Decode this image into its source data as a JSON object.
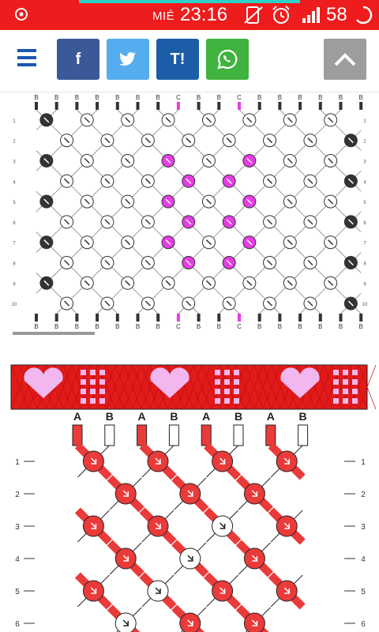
{
  "status_bar": {
    "day": "MIÉ",
    "time": "23:16",
    "battery_percent": "58",
    "icons": [
      "settings-gear-icon",
      "no-sim-icon",
      "alarm-icon",
      "signal-icon",
      "battery-icon"
    ],
    "color": "#ee1c1c"
  },
  "toolbar": {
    "menu_icon": "hamburger-menu-icon",
    "share_buttons": [
      {
        "label": "f",
        "name": "facebook",
        "color": "#3b5998"
      },
      {
        "label": "",
        "name": "twitter",
        "color": "#55acee"
      },
      {
        "label": "T!",
        "name": "tuenti",
        "color": "#1b5ea7"
      },
      {
        "label": "",
        "name": "whatsapp",
        "color": "#3fb33e"
      }
    ],
    "scroll_top_icon": "chevron-up-icon"
  },
  "pattern1": {
    "string_labels_top": [
      "B",
      "B",
      "B",
      "B",
      "B",
      "B",
      "B",
      "C",
      "B",
      "B",
      "C",
      "B",
      "B",
      "B",
      "B",
      "B",
      "B"
    ],
    "string_labels_bottom": [
      "B",
      "B",
      "B",
      "B",
      "B",
      "B",
      "B",
      "C",
      "B",
      "B",
      "C",
      "B",
      "B",
      "B",
      "B",
      "B",
      "B"
    ],
    "row_numbers": [
      "1",
      "2",
      "3",
      "4",
      "5",
      "6",
      "7",
      "8",
      "9",
      "10"
    ],
    "colors": {
      "B": "#333333",
      "C": "#e63ce6",
      "A": "#ffffff"
    }
  },
  "pattern2": {
    "string_labels": [
      "A",
      "B",
      "A",
      "B",
      "A",
      "B",
      "A",
      "B"
    ],
    "row_numbers": [
      "1",
      "2",
      "3",
      "4",
      "5",
      "6"
    ],
    "colors": {
      "A": "#ea3a3a",
      "B": "#ffffff",
      "preview_bg": "#e21a1a",
      "preview_heart": "#f2b7ee"
    }
  }
}
